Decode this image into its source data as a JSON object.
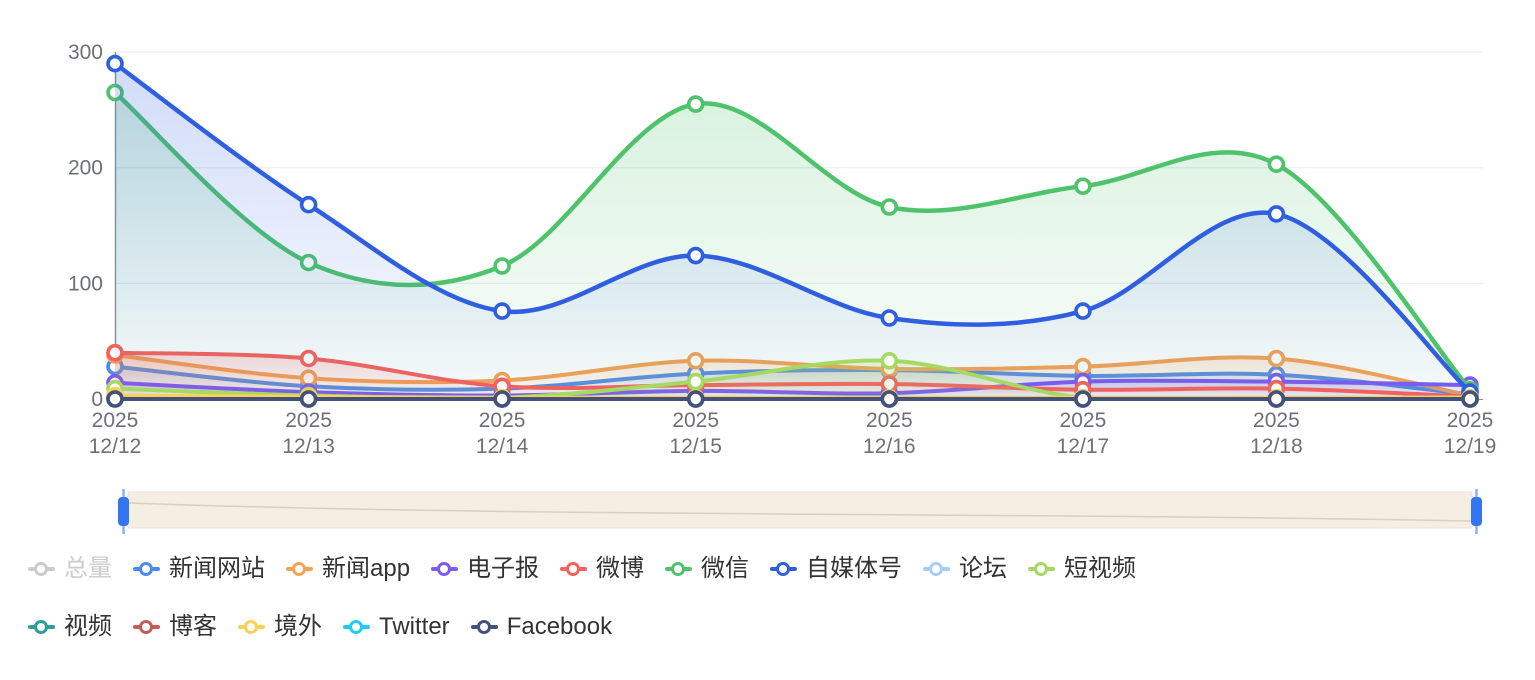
{
  "chart_data": {
    "type": "line",
    "title": "",
    "smooth": true,
    "grid": true,
    "legend_position": "bottom",
    "x_year_label": "2025",
    "categories": [
      "12/12",
      "12/13",
      "12/14",
      "12/15",
      "12/16",
      "12/17",
      "12/18",
      "12/19"
    ],
    "ylim": [
      0,
      300
    ],
    "yticks": [
      0,
      100,
      200,
      300
    ],
    "series": [
      {
        "name": "总量",
        "color": "#CDCDCD",
        "selected": false,
        "values": null
      },
      {
        "name": "新闻网站",
        "color": "#4A8DEE",
        "values": [
          28,
          11,
          9,
          22,
          25,
          20,
          21,
          4
        ]
      },
      {
        "name": "新闻app",
        "color": "#F6A254",
        "values": [
          38,
          18,
          16,
          33,
          26,
          28,
          35,
          3
        ]
      },
      {
        "name": "电子报",
        "color": "#7B5BF2",
        "values": [
          14,
          6,
          3,
          7,
          5,
          15,
          15,
          12
        ]
      },
      {
        "name": "微博",
        "color": "#F8605C",
        "values": [
          40,
          35,
          11,
          12,
          13,
          8,
          9,
          2
        ]
      },
      {
        "name": "微信",
        "color": "#4EC36C",
        "values": [
          265,
          118,
          115,
          255,
          166,
          184,
          203,
          8
        ]
      },
      {
        "name": "自媒体号",
        "color": "#2F5FE0",
        "values": [
          290,
          168,
          76,
          124,
          70,
          76,
          160,
          6
        ]
      },
      {
        "name": "论坛",
        "color": "#A8CDF6",
        "values": [
          2,
          1,
          1,
          1,
          1,
          1,
          1,
          1
        ]
      },
      {
        "name": "短视频",
        "color": "#A5D963",
        "values": [
          9,
          3,
          1,
          15,
          33,
          1,
          1,
          1
        ]
      },
      {
        "name": "视频",
        "color": "#2E9E9B",
        "values": [
          1,
          1,
          0,
          0,
          0,
          0,
          0,
          0
        ]
      },
      {
        "name": "博客",
        "color": "#C35D57",
        "values": [
          1,
          0,
          0,
          0,
          0,
          0,
          0,
          0
        ]
      },
      {
        "name": "境外",
        "color": "#F9D255",
        "values": [
          3,
          2,
          1,
          1,
          1,
          1,
          1,
          1
        ]
      },
      {
        "name": "Twitter",
        "color": "#20CCF5",
        "values": [
          0,
          0,
          0,
          0,
          0,
          0,
          0,
          0
        ]
      },
      {
        "name": "Facebook",
        "color": "#44517B",
        "values": [
          0,
          0,
          0,
          0,
          0,
          0,
          0,
          0
        ]
      }
    ]
  },
  "legend": {
    "rows": [
      [
        "总量",
        "新闻网站",
        "新闻app",
        "电子报",
        "微博",
        "微信",
        "自媒体号",
        "论坛",
        "短视频"
      ],
      [
        "视频",
        "博客",
        "境外",
        "Twitter",
        "Facebook"
      ]
    ]
  },
  "colors": {
    "axis_line": "#8A8E99",
    "axis_label": "#6E7079",
    "grid_line": "#E7EAF0",
    "legend_text": "#333333",
    "legend_disabled": "#CCCCCC",
    "slider_bg": "#F5EEE3",
    "slider_border": "#EBE1D4",
    "slider_handle": "#3276F2",
    "slider_stem": "#8FB0F4",
    "slider_preview": "#D9CFC2",
    "background": "#FFFFFF"
  }
}
